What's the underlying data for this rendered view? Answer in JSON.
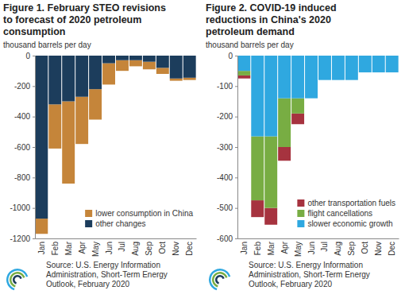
{
  "chart_data": [
    {
      "type": "bar",
      "title": "Figure 1. February STEO revisions to forecast of 2020 petroleum consumption",
      "subtitle": "thousand barrels per day",
      "categories": [
        "Jan",
        "Feb",
        "Mar",
        "Apr",
        "May",
        "Jun",
        "Jul",
        "Aug",
        "Sep",
        "Oct",
        "Nov",
        "Dec"
      ],
      "series": [
        {
          "name": "lower consumption in China",
          "color": "#c5853a",
          "values": [
            -100,
            -290,
            -540,
            -310,
            -200,
            -140,
            -70,
            -40,
            -50,
            -40,
            -15,
            -15
          ]
        },
        {
          "name": "other changes",
          "color": "#1c3d5c",
          "values": [
            -1070,
            -320,
            -300,
            -270,
            -220,
            -50,
            -30,
            -30,
            -40,
            -80,
            -150,
            -145
          ]
        }
      ],
      "ylim": [
        -1200,
        0
      ],
      "yticks": [
        -1200,
        -1000,
        -800,
        -600,
        -400,
        -200,
        0
      ],
      "stacked": true,
      "grid": false,
      "legend": "lower right",
      "annotations": [
        "Source: U.S. Energy Information Administration, Short-Term Energy Outlook, February 2020"
      ]
    },
    {
      "type": "bar",
      "title": "Figure 2. COVID-19 induced reductions in China's 2020 petroleum demand",
      "subtitle": "thousand barrels per day",
      "categories": [
        "Jan",
        "Feb",
        "Mar",
        "Apr",
        "May",
        "Jun",
        "Jul",
        "Aug",
        "Sep",
        "Oct",
        "Nov",
        "Dec"
      ],
      "series": [
        {
          "name": "other transportation fuels",
          "color": "#a6333f",
          "values": [
            -10,
            -55,
            -55,
            -45,
            -35,
            0,
            0,
            0,
            0,
            0,
            0,
            0
          ]
        },
        {
          "name": "flight cancellations",
          "color": "#78ad43",
          "values": [
            -15,
            -210,
            -235,
            -160,
            -50,
            0,
            0,
            0,
            0,
            0,
            0,
            0
          ]
        },
        {
          "name": "slower economic growth",
          "color": "#2fa8e0",
          "values": [
            -50,
            -265,
            -265,
            -140,
            -140,
            -140,
            -80,
            -80,
            -80,
            -55,
            -55,
            -55
          ]
        }
      ],
      "ylim": [
        -600,
        0
      ],
      "yticks": [
        -600,
        -500,
        -400,
        -300,
        -200,
        -100,
        0
      ],
      "stacked": true,
      "grid": false,
      "legend": "lower right",
      "annotations": [
        "Source: U.S. Energy Information Administration, Short-Term Energy Outlook, February 2020"
      ]
    }
  ]
}
